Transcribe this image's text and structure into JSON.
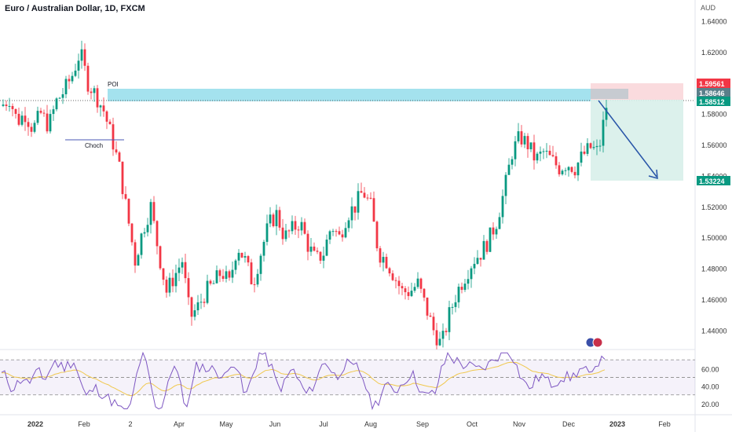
{
  "window": {
    "title": "Euro / Australian Dollar, 1D, FXCM"
  },
  "colors": {
    "up": "#26a69a",
    "up_solid": "#089981",
    "down": "#f23645",
    "zone": "#a4e2ee",
    "target": "#d8f0ea",
    "stop": "#f9d2d6",
    "rsi": "#7e57c2",
    "rsi_ma": "#f0c84d",
    "arrow": "#2855a8",
    "choch": "#4a57b5"
  },
  "price_axis": {
    "unit": "AUD",
    "labels": [
      "1.64000",
      "1.62000",
      "1.60000",
      "1.58000",
      "1.56000",
      "1.54000",
      "1.52000",
      "1.50000",
      "1.48000",
      "1.46000",
      "1.44000"
    ]
  },
  "price_tags": {
    "stop": "1.59561",
    "entry_high": "1.58646",
    "entry_low": "1.58512",
    "target": "1.53224"
  },
  "rsi_axis": {
    "labels": [
      "60.00",
      "40.00",
      "20.00"
    ]
  },
  "time_axis": {
    "labels": [
      "2022",
      "Feb",
      "2",
      "Apr",
      "May",
      "Jun",
      "Jul",
      "Aug",
      "Sep",
      "Oct",
      "Nov",
      "Dec",
      "2023",
      "Feb"
    ]
  },
  "annotations": {
    "poi": "POI",
    "choch": "Choch"
  },
  "icons": {
    "event_flags": "flag-icon"
  },
  "chart_data": {
    "type": "candlestick",
    "title": "Euro / Australian Dollar, 1D, FXCM",
    "ylabel": "AUD",
    "ylim": [
      1.4285,
      1.6535
    ],
    "close_path": [
      [
        0,
        1.585
      ],
      [
        5,
        1.59
      ],
      [
        10,
        1.575
      ],
      [
        15,
        1.58
      ],
      [
        20,
        1.57
      ],
      [
        25,
        1.58
      ],
      [
        30,
        1.572
      ],
      [
        35,
        1.588
      ],
      [
        40,
        1.595
      ],
      [
        45,
        1.605
      ],
      [
        50,
        1.62
      ],
      [
        55,
        1.6
      ],
      [
        60,
        1.592
      ],
      [
        65,
        1.582
      ],
      [
        70,
        1.565
      ],
      [
        75,
        1.545
      ],
      [
        80,
        1.515
      ],
      [
        85,
        1.485
      ],
      [
        90,
        1.505
      ],
      [
        95,
        1.52
      ],
      [
        100,
        1.49
      ],
      [
        105,
        1.465
      ],
      [
        110,
        1.475
      ],
      [
        115,
        1.485
      ],
      [
        120,
        1.448
      ],
      [
        125,
        1.455
      ],
      [
        130,
        1.465
      ],
      [
        135,
        1.47
      ],
      [
        140,
        1.478
      ],
      [
        145,
        1.47
      ],
      [
        150,
        1.495
      ],
      [
        155,
        1.485
      ],
      [
        160,
        1.47
      ],
      [
        165,
        1.49
      ],
      [
        170,
        1.508
      ],
      [
        175,
        1.515
      ],
      [
        180,
        1.5
      ],
      [
        185,
        1.505
      ],
      [
        190,
        1.51
      ],
      [
        195,
        1.495
      ],
      [
        200,
        1.485
      ],
      [
        205,
        1.49
      ],
      [
        210,
        1.508
      ],
      [
        215,
        1.5
      ],
      [
        220,
        1.515
      ],
      [
        225,
        1.52
      ],
      [
        230,
        1.53
      ],
      [
        235,
        1.52
      ],
      [
        240,
        1.49
      ],
      [
        245,
        1.485
      ],
      [
        250,
        1.475
      ],
      [
        255,
        1.465
      ],
      [
        260,
        1.465
      ],
      [
        265,
        1.47
      ],
      [
        270,
        1.455
      ],
      [
        275,
        1.44
      ],
      [
        280,
        1.43
      ],
      [
        285,
        1.45
      ],
      [
        290,
        1.465
      ],
      [
        295,
        1.475
      ],
      [
        300,
        1.485
      ],
      [
        305,
        1.49
      ],
      [
        310,
        1.498
      ],
      [
        315,
        1.51
      ],
      [
        320,
        1.53
      ],
      [
        325,
        1.555
      ],
      [
        330,
        1.565
      ],
      [
        335,
        1.56
      ],
      [
        340,
        1.55
      ],
      [
        345,
        1.555
      ],
      [
        350,
        1.55
      ],
      [
        355,
        1.545
      ],
      [
        360,
        1.548
      ],
      [
        365,
        1.545
      ],
      [
        370,
        1.553
      ],
      [
        375,
        1.558
      ],
      [
        380,
        1.555
      ],
      [
        385,
        1.585
      ]
    ],
    "rsi_ylim": [
      10,
      80
    ],
    "rsi_levels": [
      70,
      50,
      30
    ]
  }
}
